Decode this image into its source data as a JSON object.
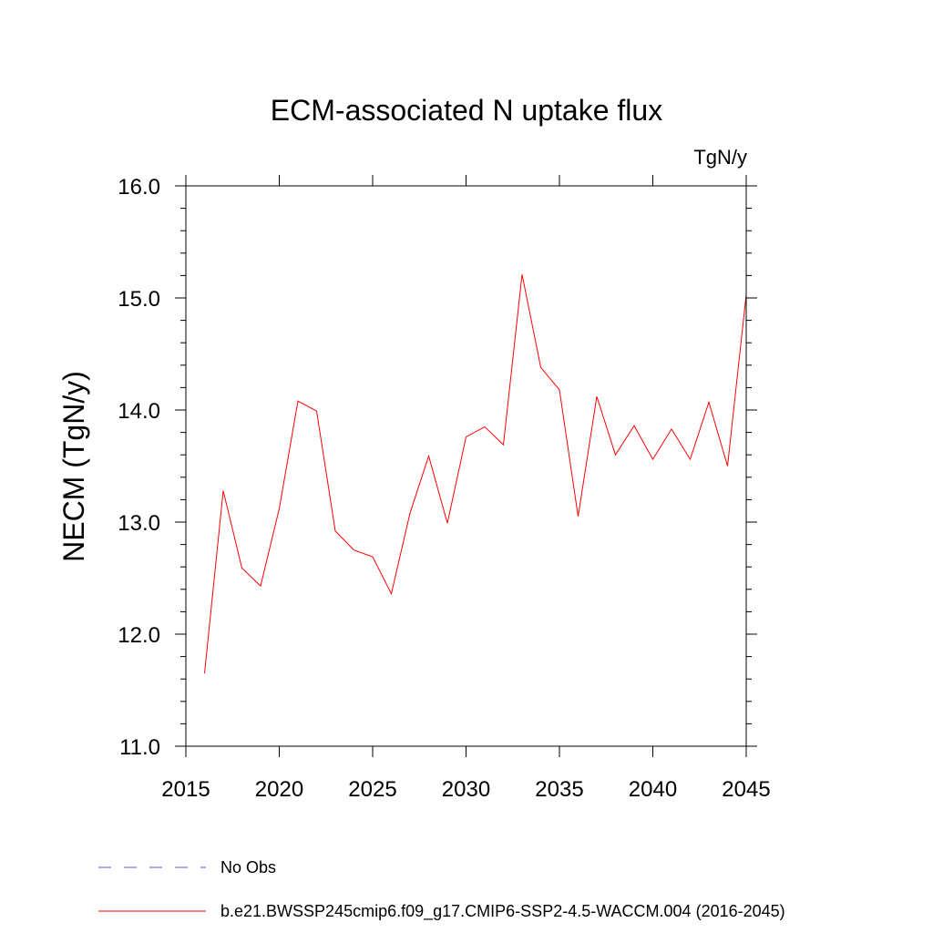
{
  "chart_data": {
    "type": "line",
    "title": "ECM-associated N uptake flux",
    "units": "TgN/y",
    "ylabel": "NECM  (TgN/y)",
    "xlabel": "",
    "xlim": [
      2015,
      2045
    ],
    "ylim": [
      11.0,
      16.0
    ],
    "x_ticks": [
      "2015",
      "2020",
      "2025",
      "2030",
      "2035",
      "2040",
      "2045"
    ],
    "y_ticks": [
      "11.0",
      "12.0",
      "13.0",
      "14.0",
      "15.0",
      "16.0"
    ],
    "grid": false,
    "legend_position": "bottom",
    "series": [
      {
        "name": "No Obs",
        "color": "#5b5bd6",
        "style": "dashed",
        "x": [],
        "values": []
      },
      {
        "name": "b.e21.BWSSP245cmip6.f09_g17.CMIP6-SSP2-4.5-WACCM.004 (2016-2045)",
        "color": "#ff0000",
        "style": "solid",
        "x": [
          2016,
          2017,
          2018,
          2019,
          2020,
          2021,
          2022,
          2023,
          2024,
          2025,
          2026,
          2027,
          2028,
          2029,
          2030,
          2031,
          2032,
          2033,
          2034,
          2035,
          2036,
          2037,
          2038,
          2039,
          2040,
          2041,
          2042,
          2043,
          2044,
          2045
        ],
        "values": [
          11.65,
          13.28,
          12.59,
          12.43,
          13.12,
          14.08,
          13.99,
          12.92,
          12.75,
          12.69,
          12.36,
          13.08,
          13.59,
          12.99,
          13.76,
          13.85,
          13.69,
          15.21,
          14.38,
          14.18,
          13.05,
          14.12,
          13.6,
          13.86,
          13.56,
          13.83,
          13.56,
          14.07,
          13.5,
          15.03
        ]
      }
    ]
  }
}
